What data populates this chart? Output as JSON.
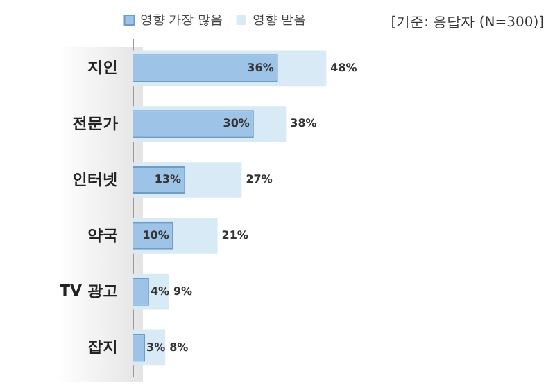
{
  "chart_data": {
    "type": "bar",
    "orientation": "horizontal",
    "categories": [
      "지인",
      "전문가",
      "인터넷",
      "약국",
      "TV 광고",
      "잡지"
    ],
    "series": [
      {
        "name": "영향 가장 많음",
        "color": "#9dc3e6",
        "values": [
          36,
          30,
          13,
          10,
          4,
          3
        ],
        "value_labels": [
          "36%",
          "30%",
          "13%",
          "10%",
          "4%",
          "3%"
        ]
      },
      {
        "name": "영향 받음",
        "color": "#d9eaf7",
        "values": [
          48,
          38,
          27,
          21,
          9,
          8
        ],
        "value_labels": [
          "48%",
          "38%",
          "27%",
          "21%",
          "9%",
          "8%"
        ]
      }
    ],
    "legend": "top",
    "annotations": [
      "[기준: 응답자 (N=300)]"
    ]
  }
}
